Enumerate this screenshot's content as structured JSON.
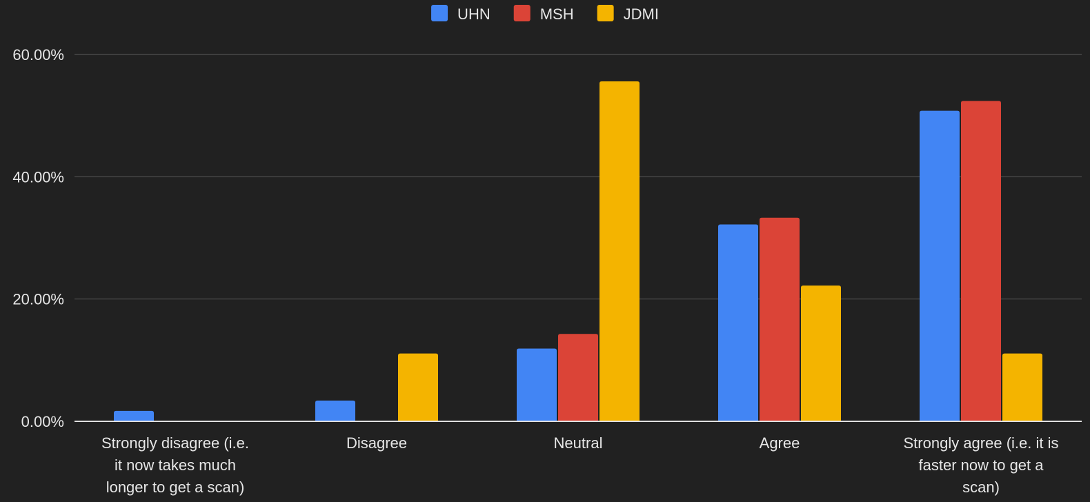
{
  "chart_data": {
    "type": "bar",
    "categories": [
      "Strongly disagree (i.e. it now takes much longer to get a scan)",
      "Disagree",
      "Neutral",
      "Agree",
      "Strongly agree (i.e. it is faster now to get a scan)"
    ],
    "category_lines": [
      [
        "Strongly disagree (i.e.",
        "it now takes much",
        "longer to get a scan)"
      ],
      [
        "Disagree"
      ],
      [
        "Neutral"
      ],
      [
        "Agree"
      ],
      [
        "Strongly agree (i.e. it is",
        "faster now to get a",
        "scan)"
      ]
    ],
    "series": [
      {
        "name": "UHN",
        "color": "#4285f4",
        "values": [
          1.7,
          3.4,
          11.9,
          32.2,
          50.8
        ]
      },
      {
        "name": "MSH",
        "color": "#db4437",
        "values": [
          0.0,
          0.0,
          14.3,
          33.3,
          52.4
        ]
      },
      {
        "name": "JDMI",
        "color": "#f4b400",
        "values": [
          0.0,
          11.1,
          55.6,
          22.2,
          11.1
        ]
      }
    ],
    "yticks": [
      "0.00%",
      "20.00%",
      "40.00%",
      "60.00%"
    ],
    "ylim": [
      0,
      60
    ],
    "grid": true,
    "legend_position": "top-center"
  }
}
